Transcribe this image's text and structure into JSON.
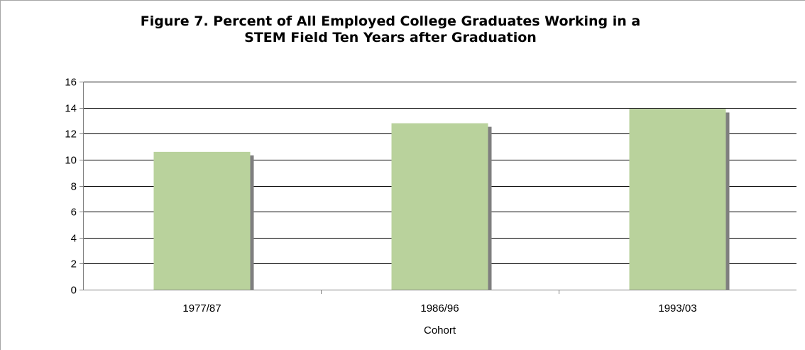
{
  "chart_data": {
    "type": "bar",
    "title": [
      "Figure 7. Percent of All Employed College Graduates Working in a",
      "STEM Field Ten Years after Graduation"
    ],
    "xlabel": "Cohort",
    "ylabel": "",
    "categories": [
      "1977/87",
      "1986/96",
      "1993/03"
    ],
    "values": [
      10.6,
      12.8,
      13.9
    ],
    "ylim": [
      0,
      16
    ],
    "yticks": [
      0,
      2,
      4,
      6,
      8,
      10,
      12,
      14,
      16
    ],
    "grid": true,
    "legend": "none",
    "colors": {
      "bar": "#b9d29c",
      "bar_shadow": "#7f7f7f",
      "grid": "#000000",
      "axis": "#808080",
      "text": "#000000"
    }
  }
}
